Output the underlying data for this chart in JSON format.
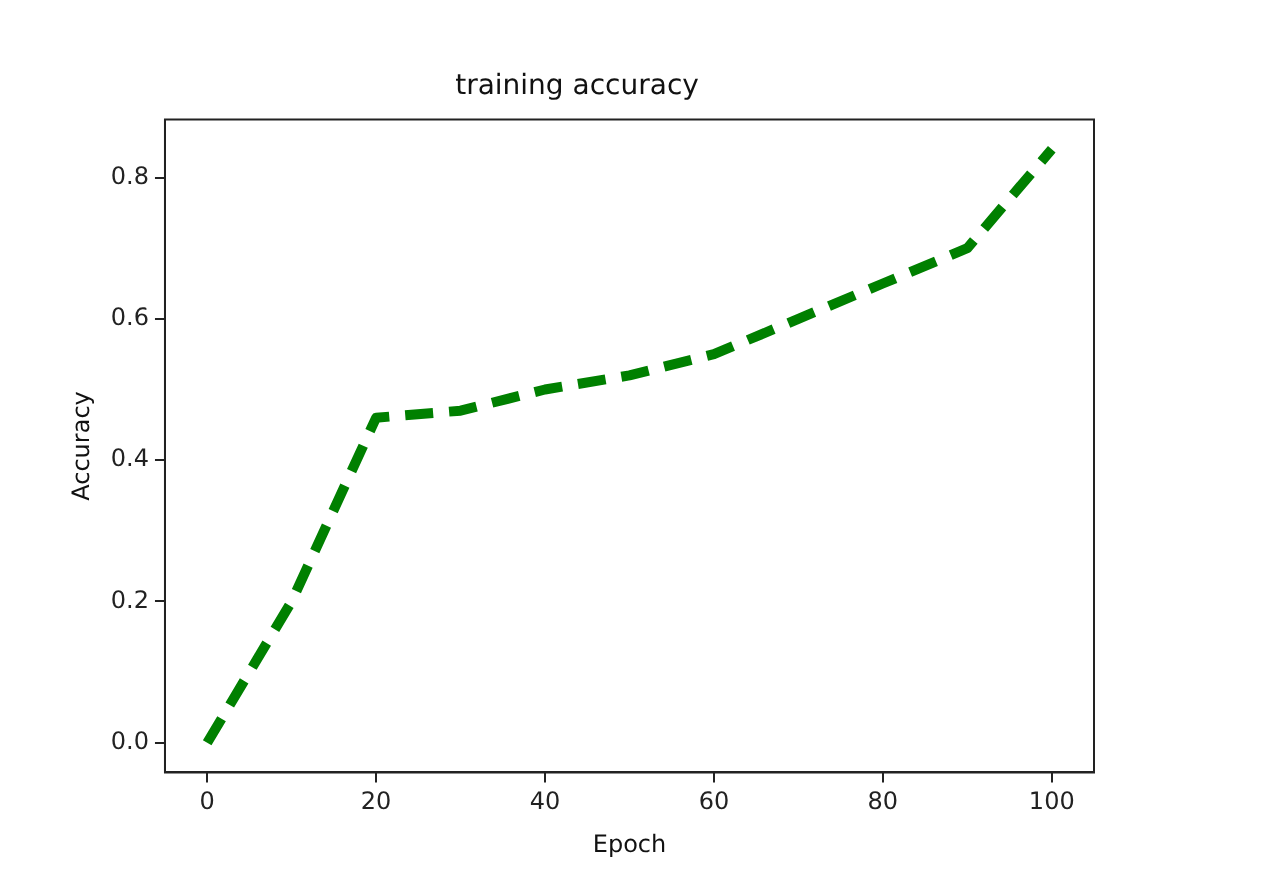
{
  "chart_data": {
    "type": "line",
    "title": "training accuracy",
    "xlabel": "Epoch",
    "ylabel": "Accuracy",
    "x": [
      0,
      10,
      20,
      30,
      40,
      50,
      60,
      70,
      80,
      90,
      100
    ],
    "series": [
      {
        "color": "#008000",
        "values": [
          0,
          0.2,
          0.46,
          0.47,
          0.5,
          0.52,
          0.55,
          0.6,
          0.65,
          0.7,
          0.84
        ]
      }
    ],
    "xlim": [
      -5,
      105
    ],
    "ylim": [
      -0.042,
      0.882
    ],
    "xticks": [
      0,
      20,
      40,
      60,
      80,
      100
    ],
    "yticks": [
      {
        "value": 0,
        "label": "0.0"
      },
      {
        "value": 0.2,
        "label": "0.2"
      },
      {
        "value": 0.4,
        "label": "0.4"
      },
      {
        "value": 0.6,
        "label": "0.6"
      },
      {
        "value": 0.8,
        "label": "0.8"
      }
    ],
    "grid": false,
    "legend": false,
    "marker": "none",
    "line_style": "dashed"
  }
}
